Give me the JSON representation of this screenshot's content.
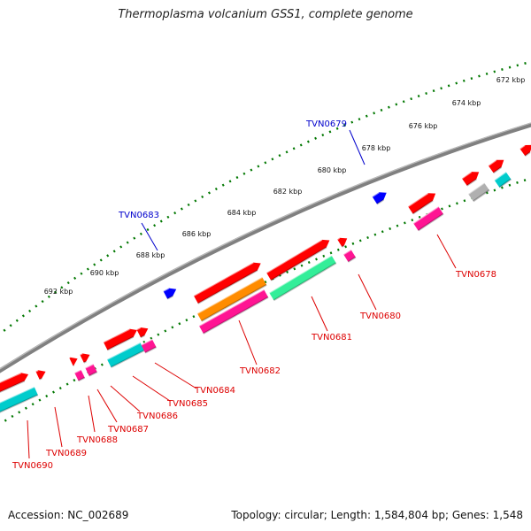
{
  "title": "Thermoplasma volcanium GSS1, complete genome",
  "footer": {
    "accession": "Accession: NC_002689",
    "summary": "Topology: circular; Length: 1,584,804 bp; Genes: 1,548"
  },
  "colors": {
    "backbone": "#808080",
    "forward_label": "#0000cc",
    "reverse_label": "#dd0000",
    "tick": "#007700",
    "red_gene": "#ff0000",
    "magenta_gene": "#ff1493",
    "cyan_gene": "#00cccc",
    "mint_gene": "#33ee99",
    "orange_gene": "#ff8c00",
    "grey_gene": "#b0b0b0",
    "blue_gene": "#0000ff"
  },
  "kbp_ticks": [
    "672 kbp",
    "674 kbp",
    "676 kbp",
    "678 kbp",
    "680 kbp",
    "682 kbp",
    "684 kbp",
    "686 kbp",
    "688 kbp",
    "690 kbp",
    "692 kbp"
  ],
  "gene_labels": {
    "forward": [
      "TVN0679",
      "TVN0683"
    ],
    "reverse": [
      "TVN0678",
      "TVN0680",
      "TVN0681",
      "TVN0682",
      "TVN0684",
      "TVN0685",
      "TVN0686",
      "TVN0687",
      "TVN0688",
      "TVN0689",
      "TVN0690"
    ]
  }
}
